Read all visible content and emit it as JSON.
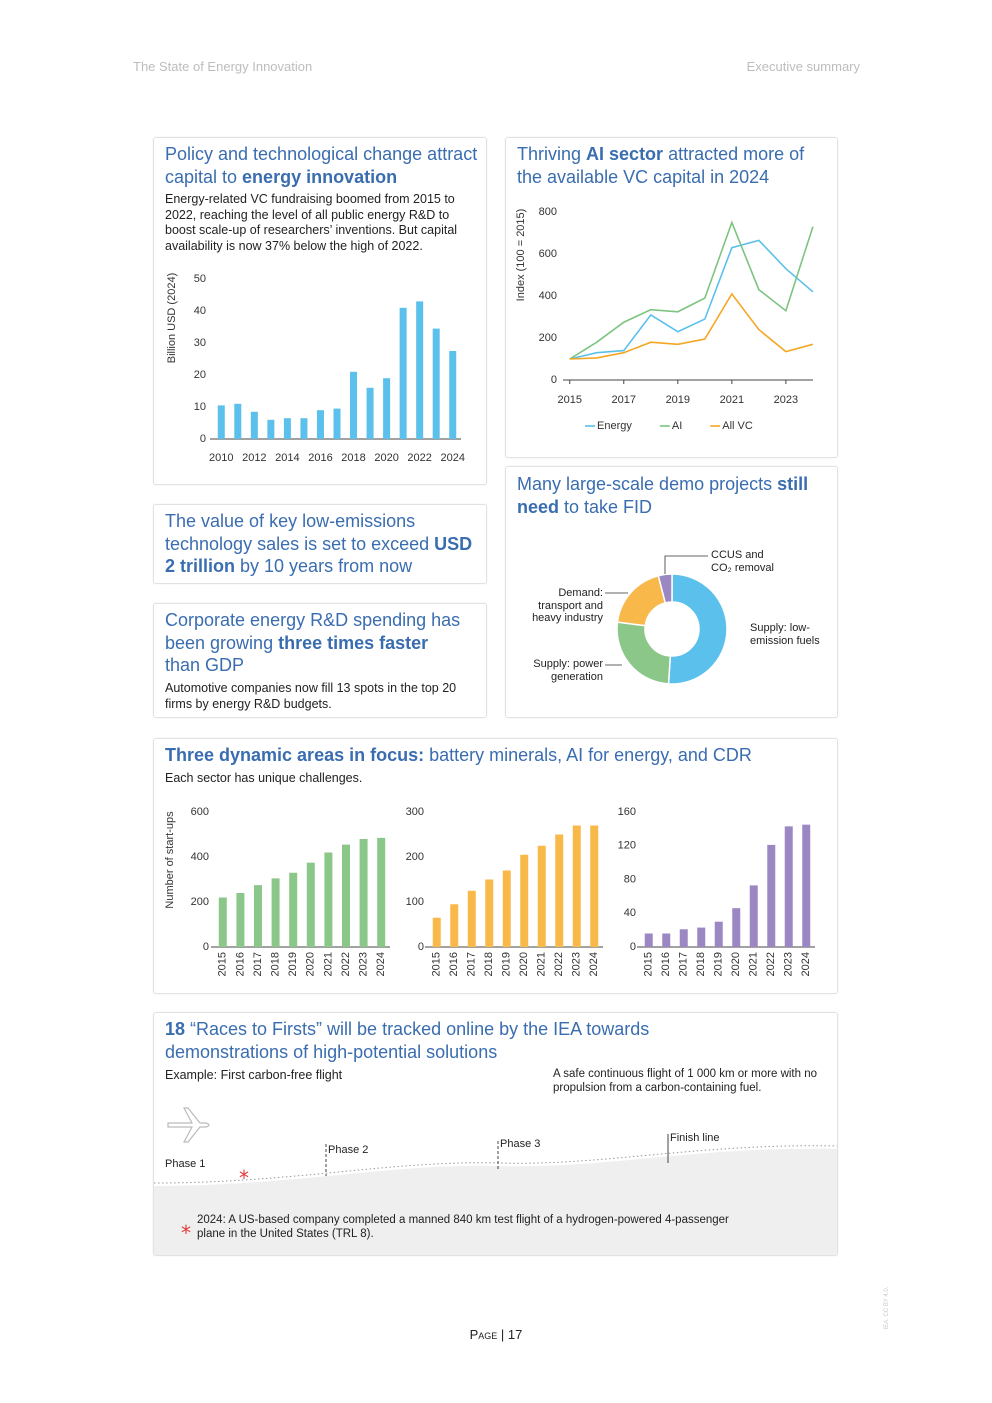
{
  "header": {
    "left": "The State of Energy Innovation",
    "right": "Executive summary"
  },
  "panels": {
    "vc": {
      "title": [
        {
          "text": "Policy and technological change attract capital to ",
          "bold": false
        },
        {
          "text": "energy innovation",
          "bold": true
        }
      ],
      "text": "Energy-related VC fundraising boomed from 2015 to 2022, reaching the level of all public energy R&D to boost scale-up of researchers’ inventions. But capital availability is now 37% below the high of 2022."
    },
    "ai": {
      "title": [
        {
          "text": "Thriving ",
          "bold": false
        },
        {
          "text": "AI sector",
          "bold": true
        },
        {
          "text": " attracted more of the available VC capital in 2024",
          "bold": false
        }
      ]
    },
    "sales": {
      "title": [
        {
          "text": "The value of key low-emissions technology sales is set to exceed ",
          "bold": false
        },
        {
          "text": "USD 2 trillion",
          "bold": true
        },
        {
          "text": " by 10 years from now",
          "bold": false
        }
      ]
    },
    "rd": {
      "title": [
        {
          "text": "Corporate energy R&D spending has been growing ",
          "bold": false
        },
        {
          "text": "three times faster",
          "bold": true
        },
        {
          "text": " than GDP",
          "bold": false
        }
      ],
      "text": "Automotive companies now fill 13 spots in the top 20 firms by energy R&D budgets."
    },
    "demo": {
      "title": [
        {
          "text": "Many large-scale demo projects ",
          "bold": false
        },
        {
          "text": "still need",
          "bold": true
        },
        {
          "text": " to take FID",
          "bold": false
        }
      ]
    },
    "areas": {
      "title": [
        {
          "text": "Three dynamic areas in focus:",
          "bold": true
        },
        {
          "text": " battery minerals, AI for energy, and CDR",
          "bold": false
        }
      ],
      "text": "Each sector has unique challenges."
    },
    "races": {
      "title": [
        {
          "text": "18",
          "bold": true
        },
        {
          "text": " “Races to Firsts” will be tracked online by the IEA towards demonstrations of high-potential solutions",
          "bold": false
        }
      ],
      "example": "Example: First carbon-free flight",
      "definition": "A safe continuous flight of 1 000 km or more with no propulsion from a carbon-containing fuel.",
      "phases": [
        "Phase 1",
        "Phase 2",
        "Phase 3",
        "Finish line"
      ],
      "note": "2024: A US-based company completed a manned 840 km test flight of a hydrogen-powered 4-passenger plane in the United States (TRL 8)."
    }
  },
  "chart_data": [
    {
      "type": "bar",
      "ylabel": "Billion USD (2024)",
      "categories": [
        "2010",
        null,
        "2012",
        null,
        "2014",
        null,
        "2016",
        null,
        "2018",
        null,
        "2020",
        null,
        "2022",
        null,
        "2024"
      ],
      "values": [
        10.5,
        11,
        8.5,
        6,
        6.5,
        6.5,
        9,
        9.5,
        21,
        16,
        19,
        41,
        43,
        34.5,
        27.5
      ],
      "color": "#5bc0eb",
      "ylim": [
        0,
        50
      ],
      "yticks": [
        0,
        10,
        20,
        30,
        40,
        50
      ]
    },
    {
      "type": "line",
      "ylabel": "Index (100 = 2015)",
      "x": [
        2015,
        2016,
        2017,
        2018,
        2019,
        2020,
        2021,
        2022,
        2023,
        2024
      ],
      "xlim": [
        2014.75,
        2024.3
      ],
      "xticks": [
        2015,
        2017,
        2019,
        2021,
        2023
      ],
      "ylim": [
        0,
        800
      ],
      "yticks": [
        0,
        200,
        400,
        600,
        800
      ],
      "legend": "bottom",
      "series": [
        {
          "name": "Energy",
          "color": "#5bc0eb",
          "values": [
            100,
            130,
            140,
            310,
            230,
            290,
            630,
            665,
            530,
            420
          ]
        },
        {
          "name": "AI",
          "color": "#7cc47f",
          "values": [
            100,
            180,
            275,
            335,
            325,
            390,
            750,
            430,
            330,
            730
          ]
        },
        {
          "name": "All VC",
          "color": "#f5a623",
          "values": [
            100,
            105,
            130,
            180,
            170,
            195,
            410,
            240,
            135,
            170
          ]
        }
      ]
    },
    {
      "type": "pie",
      "donut": true,
      "categories": [
        "Supply: low-emission fuels",
        "Supply: power generation",
        "Demand: transport and heavy industry",
        "CCUS and CO₂ removal"
      ],
      "values": [
        51,
        26,
        19,
        4
      ],
      "colors": [
        "#5bc0eb",
        "#8cc78a",
        "#f8b84a",
        "#9b87c2"
      ]
    },
    {
      "type": "bar",
      "ylabel": "Number of start-ups",
      "categories": [
        "2015",
        "2016",
        "2017",
        "2018",
        "2019",
        "2020",
        "2021",
        "2022",
        "2023",
        "2024"
      ],
      "values": [
        220,
        240,
        275,
        305,
        330,
        375,
        420,
        455,
        480,
        485
      ],
      "color": "#8cc78a",
      "ylim": [
        0,
        600
      ],
      "yticks": [
        0,
        200,
        400,
        600
      ]
    },
    {
      "type": "bar",
      "categories": [
        "2015",
        "2016",
        "2017",
        "2018",
        "2019",
        "2020",
        "2021",
        "2022",
        "2023",
        "2024"
      ],
      "values": [
        65,
        95,
        125,
        150,
        170,
        205,
        225,
        250,
        270,
        270
      ],
      "color": "#f8b84a",
      "ylim": [
        0,
        300
      ],
      "yticks": [
        0,
        100,
        200,
        300
      ]
    },
    {
      "type": "bar",
      "categories": [
        "2015",
        "2016",
        "2017",
        "2018",
        "2019",
        "2020",
        "2021",
        "2022",
        "2023",
        "2024"
      ],
      "values": [
        16,
        16,
        21,
        23,
        30,
        46,
        73,
        121,
        143,
        145
      ],
      "color": "#9b87c2",
      "ylim": [
        0,
        160
      ],
      "yticks": [
        0,
        40,
        80,
        120,
        160
      ]
    }
  ],
  "footer": {
    "page": "Page | 17",
    "license": "IEA. CC BY 4.0."
  }
}
